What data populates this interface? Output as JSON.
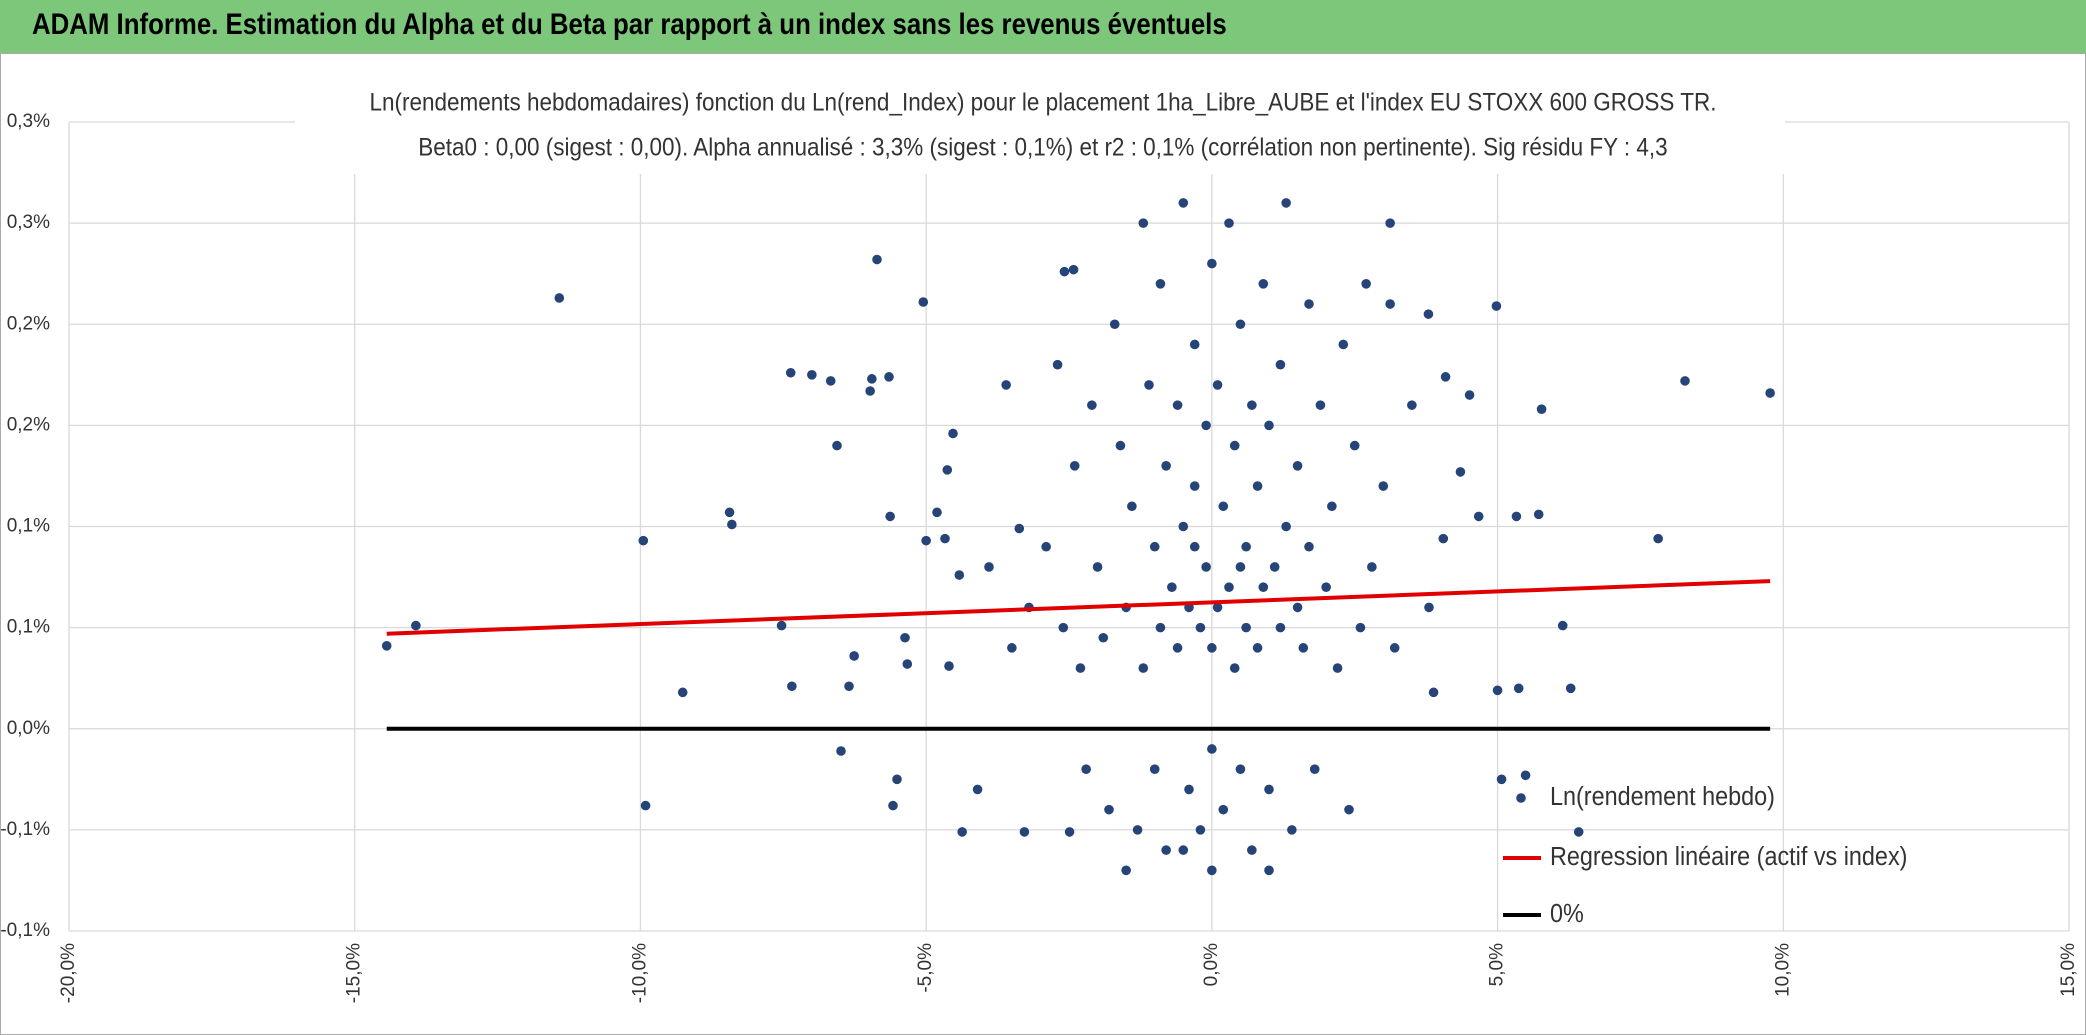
{
  "header": {
    "title": "ADAM Informe. Estimation du Alpha et du Beta par rapport à un index sans les revenus éventuels"
  },
  "chart_data": {
    "type": "scatter",
    "title": "Ln(rendements hebdomadaires) fonction du Ln(rend_Index) pour le placement 1ha_Libre_AUBE et l'index EU STOXX 600 GROSS TR.",
    "subtitle": "Beta0 : 0,00 (sigest : 0,00). Alpha annualisé : 3,3% (sigest : 0,1%) et r2 : 0,1% (corrélation non pertinente). Sig résidu FY : 4,3",
    "xlim": [
      -20,
      15
    ],
    "xticks": [
      {
        "value": -20,
        "label": "-20,0%"
      },
      {
        "value": -15,
        "label": "-15,0%"
      },
      {
        "value": -10,
        "label": "-10,0%"
      },
      {
        "value": -5,
        "label": "-5,0%"
      },
      {
        "value": 0,
        "label": "0,0%"
      },
      {
        "value": 5,
        "label": "5,0%"
      },
      {
        "value": 10,
        "label": "10,0%"
      },
      {
        "value": 15,
        "label": "15,0%"
      }
    ],
    "ylim": [
      -0.1,
      0.3
    ],
    "yticks": [
      {
        "value": -0.1,
        "label": "-0,1%"
      },
      {
        "value": -0.05,
        "label": "-0,1%"
      },
      {
        "value": 0,
        "label": "0,0%"
      },
      {
        "value": 0.05,
        "label": "0,1%"
      },
      {
        "value": 0.1,
        "label": "0,1%"
      },
      {
        "value": 0.15,
        "label": "0,2%"
      },
      {
        "value": 0.2,
        "label": "0,2%"
      },
      {
        "value": 0.25,
        "label": "0,3%"
      },
      {
        "value": 0.3,
        "label": "0,3%"
      }
    ],
    "grid": true,
    "legend": "right",
    "series": [
      {
        "name": "Ln(rendement hebdo)",
        "color": "#264478",
        "mode": "markers",
        "x": [
          -14.44,
          -13.93,
          -11.42,
          -9.95,
          -9.91,
          -9.26,
          -8.44,
          -8.4,
          -7.53,
          -7.37,
          -7.35,
          -7.0,
          -6.67,
          -6.56,
          -6.49,
          -6.35,
          -6.26,
          -5.98,
          -5.95,
          -5.86,
          -5.65,
          -5.63,
          -5.58,
          -5.51,
          -5.37,
          -5.33,
          -5.05,
          -5.0,
          -4.81,
          -4.67,
          -4.63,
          -4.6,
          -4.53,
          -4.42,
          -4.37,
          -3.28,
          -3.37,
          -2.49,
          -2.58,
          -2.42,
          3.12,
          3.12,
          3.79,
          4.09,
          4.35,
          4.51,
          4.98,
          4.67,
          5.33,
          5.37,
          5.49,
          5.77,
          5.72,
          6.42,
          6.14,
          6.28,
          7.81,
          8.28,
          9.77,
          5.0,
          5.07,
          4.05,
          3.88,
          -2.9,
          -2.6,
          -2.4,
          -2.3,
          -2.2,
          -2.1,
          -2.0,
          -1.9,
          -1.8,
          -1.7,
          -1.6,
          -1.5,
          -1.4,
          -1.3,
          -1.2,
          -1.2,
          -1.1,
          -1.0,
          -1.0,
          -0.9,
          -0.9,
          -0.8,
          -0.8,
          -0.7,
          -0.6,
          -0.6,
          -0.5,
          -0.5,
          -0.4,
          -0.4,
          -0.3,
          -0.3,
          -0.2,
          -0.2,
          -0.1,
          -0.1,
          0,
          0,
          0,
          0.1,
          0.1,
          0.2,
          0.2,
          0.3,
          0.3,
          0.4,
          0.4,
          0.5,
          0.5,
          0.6,
          0.6,
          0.7,
          0.7,
          0.8,
          0.8,
          0.9,
          0.9,
          1.0,
          1.0,
          1.1,
          1.2,
          1.2,
          1.3,
          1.3,
          1.4,
          1.5,
          1.5,
          1.6,
          1.7,
          1.7,
          1.8,
          1.9,
          2.0,
          2.1,
          2.2,
          2.3,
          2.4,
          2.5,
          2.6,
          2.8,
          3.0,
          3.2,
          -3.2,
          -3.5,
          -3.9,
          -4.1,
          -3.6,
          3.5,
          3.8,
          -2.7,
          2.7,
          -1.5,
          0.0,
          1.0,
          -0.5,
          0.5,
          -0.3
        ],
        "values": [
          0.041,
          0.051,
          0.213,
          0.093,
          -0.038,
          0.018,
          0.107,
          0.101,
          0.051,
          0.176,
          0.021,
          0.175,
          0.172,
          0.14,
          -0.011,
          0.021,
          0.036,
          0.167,
          0.173,
          0.232,
          0.174,
          0.105,
          -0.038,
          -0.025,
          0.045,
          0.032,
          0.211,
          0.093,
          0.107,
          0.094,
          0.128,
          0.031,
          0.146,
          0.076,
          -0.051,
          -0.051,
          0.099,
          -0.051,
          0.226,
          0.227,
          0.25,
          0.21,
          0.205,
          0.174,
          0.127,
          0.165,
          0.209,
          0.105,
          0.105,
          0.02,
          -0.023,
          0.158,
          0.106,
          -0.051,
          0.051,
          0.02,
          0.094,
          0.172,
          0.166,
          0.019,
          -0.025,
          0.094,
          0.018,
          0.09,
          0.05,
          0.13,
          0.03,
          -0.02,
          0.16,
          0.08,
          0.045,
          -0.04,
          0.2,
          0.14,
          0.06,
          0.11,
          -0.05,
          0.25,
          0.03,
          0.17,
          0.09,
          -0.02,
          0.22,
          0.05,
          0.13,
          -0.06,
          0.07,
          0.16,
          0.04,
          0.26,
          0.1,
          -0.03,
          0.06,
          0.19,
          0.12,
          0.05,
          -0.05,
          0.15,
          0.08,
          0.23,
          0.04,
          -0.01,
          0.17,
          0.06,
          0.11,
          -0.04,
          0.25,
          0.07,
          0.14,
          0.03,
          0.2,
          -0.02,
          0.09,
          0.05,
          0.16,
          -0.06,
          0.12,
          0.04,
          0.22,
          0.07,
          -0.03,
          0.15,
          0.08,
          0.18,
          0.05,
          0.26,
          0.1,
          -0.05,
          0.13,
          0.06,
          0.04,
          0.21,
          0.09,
          -0.02,
          0.16,
          0.07,
          0.11,
          0.03,
          0.19,
          -0.04,
          0.14,
          0.05,
          0.08,
          0.12,
          0.04,
          0.06,
          0.04,
          0.08,
          -0.03,
          0.17,
          0.16,
          0.06,
          0.18,
          0.22,
          -0.07,
          -0.07,
          -0.07,
          -0.06,
          0.08,
          0.09
        ]
      },
      {
        "name": "Regression linéaire (actif vs index)",
        "color": "#e00000",
        "mode": "line",
        "x": [
          -14.44,
          9.77
        ],
        "values": [
          0.047,
          0.073
        ]
      },
      {
        "name": "0%",
        "color": "#000000",
        "mode": "line",
        "x": [
          -14.44,
          9.77
        ],
        "values": [
          0,
          0
        ]
      }
    ]
  }
}
